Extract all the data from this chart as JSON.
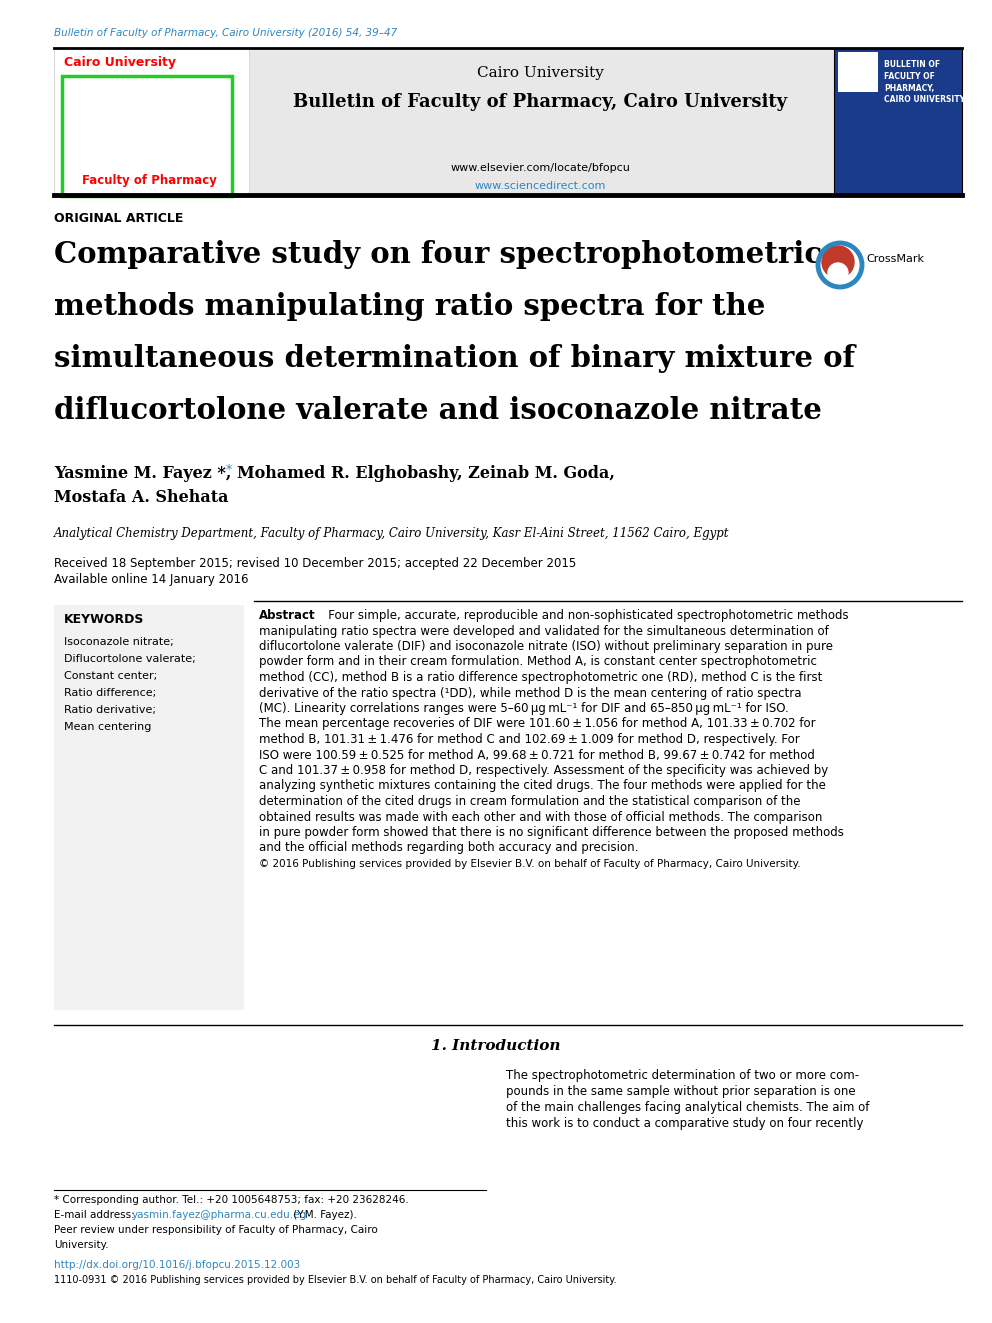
{
  "page_width": 9.92,
  "page_height": 13.23,
  "bg_color": "#ffffff",
  "journal_line": "Bulletin of Faculty of Pharmacy, Cairo University (2016) 54, 39–47",
  "journal_line_color": "#2e86c1",
  "header_bg": "#e8e8e8",
  "header_journal_name": "Cairo University",
  "header_journal_bold": "Bulletin of Faculty of Pharmacy, Cairo University",
  "header_website1": "www.elsevier.com/locate/bfopcu",
  "header_website2": "www.sciencedirect.com",
  "header_website2_color": "#2e86c1",
  "article_type": "ORIGINAL ARTICLE",
  "title_line1": "Comparative study on four spectrophotometric",
  "title_line2": "methods manipulating ratio spectra for the",
  "title_line3": "simultaneous determination of binary mixture of",
  "title_line4": "diflucortolone valerate and isoconazole nitrate",
  "authors_line1": "Yasmine M. Fayez *, Mohamed R. Elghobashy, Zeinab M. Goda,",
  "authors_line2": "Mostafa A. Shehata",
  "affiliation": "Analytical Chemistry Department, Faculty of Pharmacy, Cairo University, Kasr El-Aini Street, 11562 Cairo, Egypt",
  "received": "Received 18 September 2015; revised 10 December 2015; accepted 22 December 2015",
  "available": "Available online 14 January 2016",
  "keywords_title": "KEYWORDS",
  "keywords": [
    "Isoconazole nitrate;",
    "Diflucortolone valerate;",
    "Constant center;",
    "Ratio difference;",
    "Ratio derivative;",
    "Mean centering"
  ],
  "abstract_lines": [
    "   Four simple, accurate, reproducible and non-sophisticated spectrophotometric methods",
    "manipulating ratio spectra were developed and validated for the simultaneous determination of",
    "diflucortolone valerate (DIF) and isoconazole nitrate (ISO) without preliminary separation in pure",
    "powder form and in their cream formulation. Method A, is constant center spectrophotometric",
    "method (CC), method B is a ratio difference spectrophotometric one (RD), method C is the first",
    "derivative of the ratio spectra (¹DD), while method D is the mean centering of ratio spectra",
    "(MC). Linearity correlations ranges were 5–60 μg mL⁻¹ for DIF and 65–850 μg mL⁻¹ for ISO.",
    "The mean percentage recoveries of DIF were 101.60 ± 1.056 for method A, 101.33 ± 0.702 for",
    "method B, 101.31 ± 1.476 for method C and 102.69 ± 1.009 for method D, respectively. For",
    "ISO were 100.59 ± 0.525 for method A, 99.68 ± 0.721 for method B, 99.67 ± 0.742 for method",
    "C and 101.37 ± 0.958 for method D, respectively. Assessment of the specificity was achieved by",
    "analyzing synthetic mixtures containing the cited drugs. The four methods were applied for the",
    "determination of the cited drugs in cream formulation and the statistical comparison of the",
    "obtained results was made with each other and with those of official methods. The comparison",
    "in pure powder form showed that there is no significant difference between the proposed methods",
    "and the official methods regarding both accuracy and precision."
  ],
  "abstract_copyright": "© 2016 Publishing services provided by Elsevier B.V. on behalf of Faculty of Pharmacy, Cairo University.",
  "intro_title": "1. Introduction",
  "intro_right_lines": [
    "The spectrophotometric determination of two or more com-",
    "pounds in the same sample without prior separation is one",
    "of the main challenges facing analytical chemists. The aim of",
    "this work is to conduct a comparative study on four recently"
  ],
  "footnote_star_line": "* Corresponding author. Tel.: +20 1005648753; fax: +20 23628246.",
  "footnote_email_pre": "E-mail address: ",
  "footnote_email": "yasmin.fayez@pharma.cu.edu.eg",
  "footnote_email_post": " (Y.M. Fayez).",
  "footnote_peer1": "Peer review under responsibility of Faculty of Pharmacy, Cairo",
  "footnote_peer2": "University.",
  "footnote_doi": "http://dx.doi.org/10.1016/j.bfopcu.2015.12.003",
  "footnote_issn": "1110-0931 © 2016 Publishing services provided by Elsevier B.V. on behalf of Faculty of Pharmacy, Cairo University.",
  "right_box_text": "BULLETIN OF\nFACULTY OF\nPHARMACY,\nCAIRO UNIVERSITY",
  "right_box_color": "#1a3a8a",
  "logo_text_top": "Cairo University",
  "logo_text_bot": "Faculty of Pharmacy"
}
